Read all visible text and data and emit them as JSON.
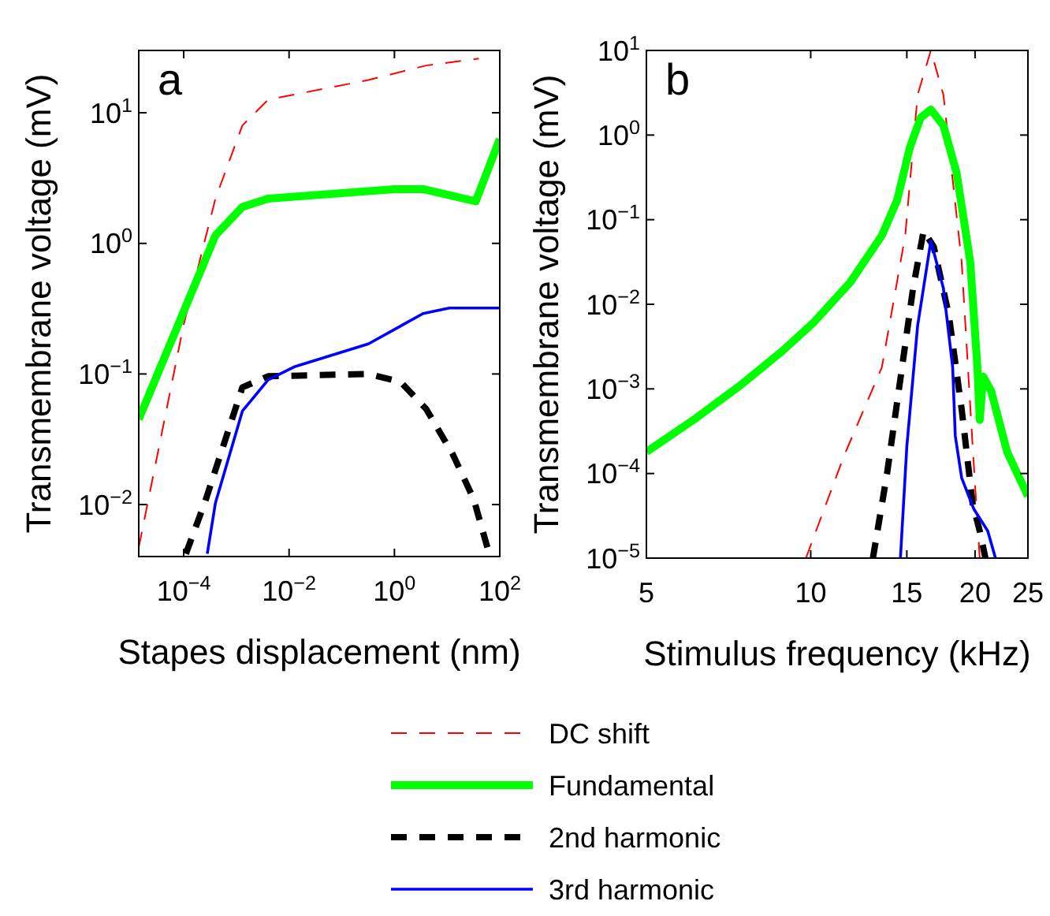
{
  "chart_data": [
    {
      "type": "line",
      "annotations": [
        "a"
      ],
      "xlabel": "Stapes displacement (nm)",
      "ylabel": "Transmembrane voltage (mV)",
      "log": "xy",
      "xlim": [
        1.4e-05,
        100
      ],
      "ylim": [
        0.004,
        30
      ],
      "xticks": [
        {
          "value": 0.0001,
          "label": "10$^{−4}$"
        },
        {
          "value": 0.01,
          "label": "10$^{−2}$"
        },
        {
          "value": 1,
          "label": "10$^{0}$"
        },
        {
          "value": 100,
          "label": "10$^{2}$"
        }
      ],
      "yticks": [
        {
          "value": 0.01,
          "label": "10$^{−2}$"
        },
        {
          "value": 0.1,
          "label": "10$^{−1}$"
        },
        {
          "value": 1,
          "label": "10$^{0}$"
        },
        {
          "value": 10,
          "label": "10$^{1}$"
        }
      ],
      "series": [
        {
          "color": "#ff0000",
          "line_style": "dashed",
          "x": [
            1.4e-05,
            0.0001,
            0.0004,
            0.0013,
            0.004,
            0.32,
            4,
            40
          ],
          "values": [
            0.0047,
            0.24,
            2.2,
            8,
            12.6,
            17.8,
            23,
            26
          ]
        },
        {
          "color": "#00ff00",
          "line_style": "solid",
          "x": [
            1.4e-05,
            0.0004,
            0.0013,
            0.004,
            1,
            3.5,
            35,
            100
          ],
          "values": [
            0.045,
            1.15,
            1.9,
            2.2,
            2.6,
            2.6,
            2.1,
            6.3
          ]
        },
        {
          "color": "#000000",
          "line_style": "dashed",
          "x": [
            0.00011,
            0.00025,
            0.0013,
            0.004,
            0.32,
            1.3,
            4,
            13,
            32,
            63
          ],
          "values": [
            0.0042,
            0.0103,
            0.079,
            0.096,
            0.1,
            0.087,
            0.054,
            0.024,
            0.011,
            0.0042
          ]
        },
        {
          "color": "#0000ff",
          "line_style": "solid",
          "x": [
            0.00028,
            0.0004,
            0.0013,
            0.004,
            0.013,
            0.32,
            3.5,
            11,
            100
          ],
          "values": [
            0.0042,
            0.0103,
            0.052,
            0.09,
            0.114,
            0.17,
            0.29,
            0.32,
            0.32
          ]
        }
      ]
    },
    {
      "type": "line",
      "annotations": [
        "b"
      ],
      "xlabel": "Stimulus frequency (kHz)",
      "ylabel": "Transmembrane voltage (mV)",
      "log": "xy",
      "xlim": [
        5,
        25
      ],
      "ylim": [
        1e-05,
        10
      ],
      "legend": "bottom",
      "xticks": [
        5,
        10,
        15,
        20,
        25
      ],
      "yticks": [
        {
          "value": 1e-05,
          "label": "10$^{−5}$"
        },
        {
          "value": 0.0001,
          "label": "10$^{−4}$"
        },
        {
          "value": 0.001,
          "label": "10$^{−3}$"
        },
        {
          "value": 0.01,
          "label": "10$^{−2}$"
        },
        {
          "value": 0.1,
          "label": "10$^{−1}$"
        },
        {
          "value": 1,
          "label": "10$^{0}$"
        },
        {
          "value": 10,
          "label": "10$^{1}$"
        }
      ],
      "series": [
        {
          "name": "DC shift",
          "color": "#ff0000",
          "line_style": "dashed",
          "x": [
            9.8,
            11.5,
            13.5,
            14.9,
            15.7,
            16.6,
            17.5,
            18.9,
            19.8,
            20.4
          ],
          "values": [
            1e-05,
            0.00016,
            0.0018,
            0.065,
            3,
            10,
            3,
            0.032,
            0.00021,
            1e-05
          ]
        },
        {
          "name": "Fundamental",
          "color": "#00ff00",
          "line_style": "solid",
          "x": [
            5,
            6.1,
            7.43,
            8.87,
            10.1,
            11.8,
            13.5,
            14.4,
            15.2,
            15.9,
            16.6,
            17.5,
            18.5,
            19.6,
            20.2,
            20.4,
            20.7,
            21.4,
            22.9,
            25
          ],
          "values": [
            0.00018,
            0.00043,
            0.0011,
            0.0028,
            0.006,
            0.018,
            0.065,
            0.17,
            0.72,
            1.6,
            2,
            1.3,
            0.36,
            0.032,
            0.0018,
            0.00043,
            0.0014,
            0.00095,
            0.00018,
            5.4e-05
          ]
        },
        {
          "name": "2nd harmonic",
          "color": "#000000",
          "line_style": "dashed",
          "x": [
            13,
            13.8,
            14.7,
            15.4,
            16.1,
            16.8,
            17.9,
            18.9,
            19.8,
            20.4,
            20.9
          ],
          "values": [
            1e-05,
            0.0001,
            0.0018,
            0.0155,
            0.074,
            0.048,
            0.0076,
            0.00058,
            4.4e-05,
            2.1e-05,
            1e-05
          ]
        },
        {
          "name": "3rd harmonic",
          "color": "#0000ff",
          "line_style": "solid",
          "x": [
            14.6,
            15,
            15.7,
            16.6,
            17.5,
            18.2,
            18.4,
            18.9,
            19.9,
            21.1,
            21.8
          ],
          "values": [
            1e-05,
            0.00021,
            0.0056,
            0.056,
            0.0155,
            0.0018,
            0.00028,
            8.9e-05,
            3.8e-05,
            2.1e-05,
            1e-05
          ]
        }
      ]
    }
  ]
}
